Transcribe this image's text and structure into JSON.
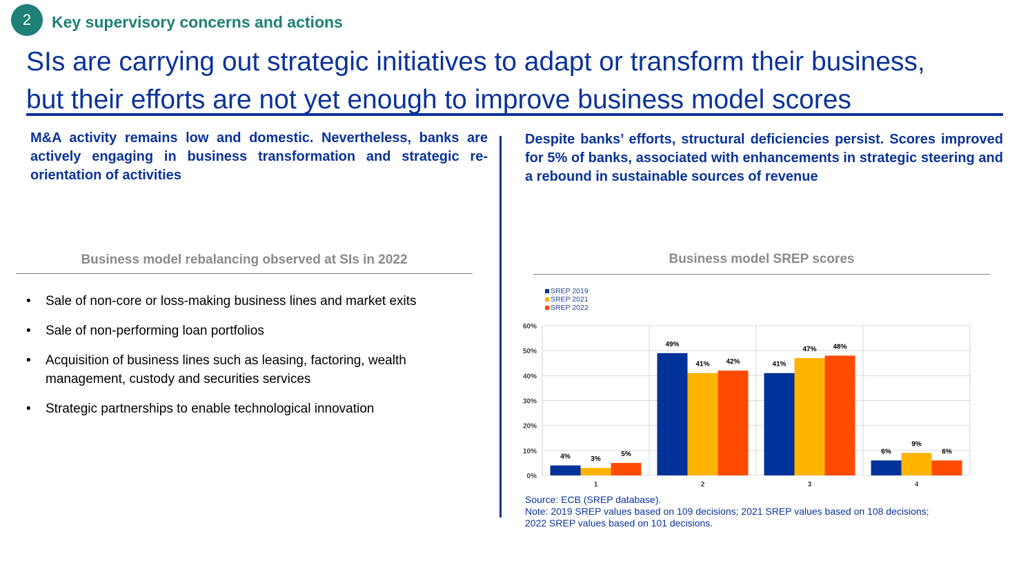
{
  "badge": "2",
  "section_title": "Key supervisory concerns and actions",
  "headline": {
    "line1": "SIs are carrying out strategic initiatives to adapt or transform their business,",
    "line2": "but their efforts are not yet enough to improve business model scores"
  },
  "left": {
    "intro": "M&A activity remains low and domestic. Nevertheless, banks are actively engaging in business transformation and strategic re-orientation of activities",
    "panel_title": "Business model rebalancing observed at SIs in 2022",
    "bullets": [
      "Sale of non-core or loss-making business lines and market exits",
      "Sale of non-performing loan portfolios",
      "Acquisition of business lines such as leasing, factoring, wealth management, custody and securities services",
      "Strategic partnerships to enable technological innovation"
    ]
  },
  "right": {
    "intro": "Despite banks’ efforts, structural deficiencies persist. Scores improved for 5% of banks, associated with enhancements in strategic steering and a rebound in sustainable sources of revenue",
    "panel_title": "Business model SREP scores",
    "source": "Source: ECB (SREP database).",
    "note_line1": "Note: 2019 SREP values based on 109 decisions; 2021 SREP values based on 108 decisions;",
    "note_line2": "2022 SREP values based on 101 decisions."
  },
  "chart_data": {
    "type": "bar",
    "title": "Business model SREP scores",
    "categories": [
      "1",
      "2",
      "3",
      "4"
    ],
    "series": [
      {
        "name": "SREP 2019",
        "color": "#003299",
        "values": [
          4,
          49,
          41,
          6
        ]
      },
      {
        "name": "SREP 2021",
        "color": "#ffb400",
        "values": [
          3,
          41,
          47,
          9
        ]
      },
      {
        "name": "SREP 2022",
        "color": "#ff4b00",
        "values": [
          5,
          42,
          48,
          6
        ]
      }
    ],
    "value_suffix": "%",
    "ylim": [
      0,
      60
    ],
    "yticks": [
      0,
      10,
      20,
      30,
      40,
      50,
      60
    ],
    "grid": true,
    "legend": "top-left",
    "xlabel": "",
    "ylabel": ""
  }
}
